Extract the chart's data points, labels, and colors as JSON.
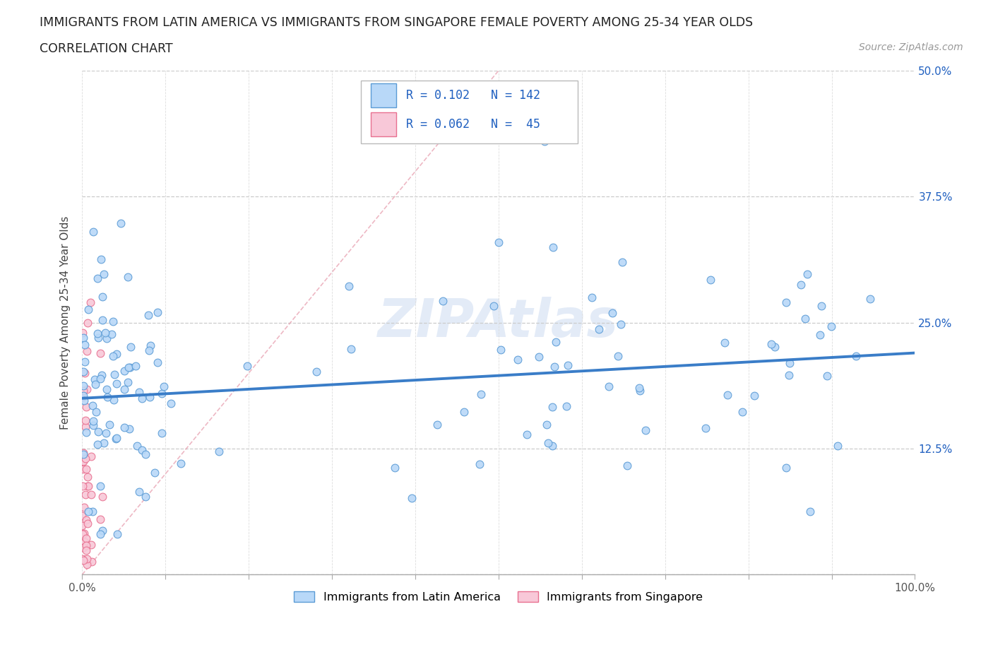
{
  "title_line1": "IMMIGRANTS FROM LATIN AMERICA VS IMMIGRANTS FROM SINGAPORE FEMALE POVERTY AMONG 25-34 YEAR OLDS",
  "title_line2": "CORRELATION CHART",
  "source": "Source: ZipAtlas.com",
  "watermark": "ZIPAtlas",
  "R_blue": 0.102,
  "N_blue": 142,
  "R_pink": 0.062,
  "N_pink": 45,
  "ylabel": "Female Poverty Among 25-34 Year Olds",
  "xlim": [
    0,
    1.0
  ],
  "ylim": [
    0,
    0.5
  ],
  "xticks": [
    0.0,
    0.1,
    0.2,
    0.3,
    0.4,
    0.5,
    0.6,
    0.7,
    0.8,
    0.9,
    1.0
  ],
  "yticks": [
    0.0,
    0.125,
    0.25,
    0.375,
    0.5
  ],
  "ytick_labels_right": [
    "",
    "12.5%",
    "25.0%",
    "37.5%",
    "50.0%"
  ],
  "color_blue_fill": "#b8d8f8",
  "color_blue_edge": "#5b9bd5",
  "color_pink_fill": "#f8c8d8",
  "color_pink_edge": "#e87090",
  "color_blue_text": "#2060c0",
  "color_reg_blue": "#3a7dc8",
  "color_diag": "#e8a0b0",
  "background": "#ffffff"
}
